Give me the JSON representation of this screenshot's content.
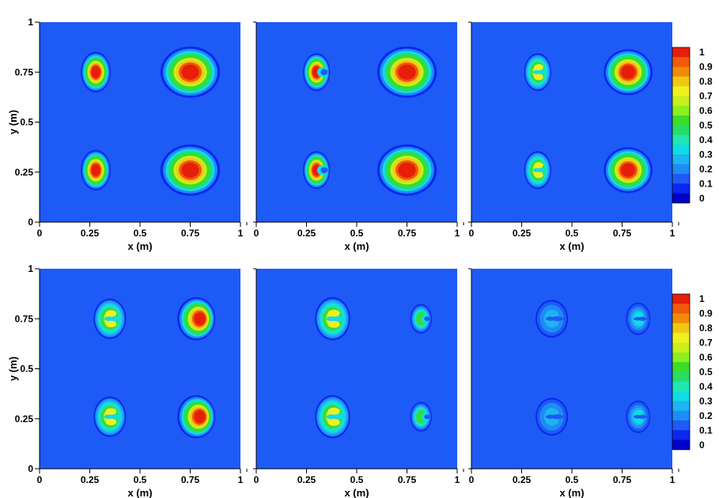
{
  "chart_data": {
    "type": "heatmap",
    "grid": false,
    "x_range": [
      0,
      1
    ],
    "y_range": [
      0,
      1
    ],
    "xlabel": "x (m)",
    "ylabel": "y (m)",
    "x_ticks": [
      "0",
      "0.25",
      "0.5",
      "0.75",
      "1"
    ],
    "y_ticks": [
      "0",
      "0.25",
      "0.5",
      "0.75",
      "1"
    ],
    "colorbar": {
      "levels": [
        "1",
        "0.9",
        "0.8",
        "0.7",
        "0.6",
        "0.5",
        "0.4",
        "0.3",
        "0.2",
        "0.1",
        "0"
      ],
      "range": [
        0,
        1
      ],
      "colors": [
        "#0000c8",
        "#0a28f0",
        "#1e5af5",
        "#1e8cf5",
        "#1eb4f0",
        "#10dce6",
        "#20e6b4",
        "#28dc64",
        "#3cdc28",
        "#8cf01e",
        "#c8f01e",
        "#f0f01e",
        "#f0c814",
        "#f08c0a",
        "#f05a0a",
        "#e61e0a"
      ]
    },
    "panels": [
      {
        "row": 0,
        "col": 0,
        "blobs": [
          {
            "x": 0.28,
            "y": 0.75,
            "rx": 0.055,
            "ry": 0.075,
            "peak": 1,
            "shape": "round"
          },
          {
            "x": 0.75,
            "y": 0.75,
            "rx": 0.11,
            "ry": 0.095,
            "peak": 1,
            "shape": "round"
          },
          {
            "x": 0.28,
            "y": 0.26,
            "rx": 0.055,
            "ry": 0.075,
            "peak": 1,
            "shape": "round"
          },
          {
            "x": 0.75,
            "y": 0.26,
            "rx": 0.11,
            "ry": 0.095,
            "peak": 1,
            "shape": "round"
          }
        ]
      },
      {
        "row": 0,
        "col": 1,
        "blobs": [
          {
            "x": 0.3,
            "y": 0.75,
            "rx": 0.05,
            "ry": 0.07,
            "peak": 1,
            "shape": "crescent"
          },
          {
            "x": 0.75,
            "y": 0.75,
            "rx": 0.11,
            "ry": 0.095,
            "peak": 1,
            "shape": "round"
          },
          {
            "x": 0.3,
            "y": 0.26,
            "rx": 0.05,
            "ry": 0.07,
            "peak": 1,
            "shape": "crescent"
          },
          {
            "x": 0.75,
            "y": 0.26,
            "rx": 0.11,
            "ry": 0.095,
            "peak": 1,
            "shape": "round"
          }
        ]
      },
      {
        "row": 0,
        "col": 2,
        "blobs": [
          {
            "x": 0.33,
            "y": 0.75,
            "rx": 0.05,
            "ry": 0.07,
            "peak": 0.7,
            "shape": "double"
          },
          {
            "x": 0.78,
            "y": 0.75,
            "rx": 0.09,
            "ry": 0.085,
            "peak": 1,
            "shape": "round"
          },
          {
            "x": 0.33,
            "y": 0.26,
            "rx": 0.05,
            "ry": 0.07,
            "peak": 0.7,
            "shape": "double"
          },
          {
            "x": 0.78,
            "y": 0.26,
            "rx": 0.09,
            "ry": 0.085,
            "peak": 1,
            "shape": "round"
          }
        ]
      },
      {
        "row": 1,
        "col": 0,
        "blobs": [
          {
            "x": 0.35,
            "y": 0.75,
            "rx": 0.06,
            "ry": 0.075,
            "peak": 0.7,
            "shape": "double"
          },
          {
            "x": 0.78,
            "y": 0.75,
            "rx": 0.07,
            "ry": 0.08,
            "peak": 1,
            "shape": "half"
          },
          {
            "x": 0.35,
            "y": 0.26,
            "rx": 0.06,
            "ry": 0.075,
            "peak": 0.7,
            "shape": "double"
          },
          {
            "x": 0.78,
            "y": 0.26,
            "rx": 0.07,
            "ry": 0.08,
            "peak": 1,
            "shape": "half"
          }
        ]
      },
      {
        "row": 1,
        "col": 1,
        "blobs": [
          {
            "x": 0.38,
            "y": 0.75,
            "rx": 0.065,
            "ry": 0.08,
            "peak": 0.7,
            "shape": "double"
          },
          {
            "x": 0.82,
            "y": 0.75,
            "rx": 0.04,
            "ry": 0.055,
            "peak": 0.55,
            "shape": "crescent"
          },
          {
            "x": 0.38,
            "y": 0.26,
            "rx": 0.065,
            "ry": 0.08,
            "peak": 0.7,
            "shape": "double"
          },
          {
            "x": 0.82,
            "y": 0.26,
            "rx": 0.04,
            "ry": 0.055,
            "peak": 0.55,
            "shape": "crescent"
          }
        ]
      },
      {
        "row": 1,
        "col": 2,
        "blobs": [
          {
            "x": 0.4,
            "y": 0.75,
            "rx": 0.06,
            "ry": 0.07,
            "peak": 0.3,
            "shape": "double"
          },
          {
            "x": 0.83,
            "y": 0.75,
            "rx": 0.045,
            "ry": 0.06,
            "peak": 0.35,
            "shape": "double"
          },
          {
            "x": 0.4,
            "y": 0.26,
            "rx": 0.06,
            "ry": 0.07,
            "peak": 0.3,
            "shape": "double"
          },
          {
            "x": 0.83,
            "y": 0.26,
            "rx": 0.045,
            "ry": 0.06,
            "peak": 0.35,
            "shape": "double"
          }
        ]
      }
    ]
  }
}
